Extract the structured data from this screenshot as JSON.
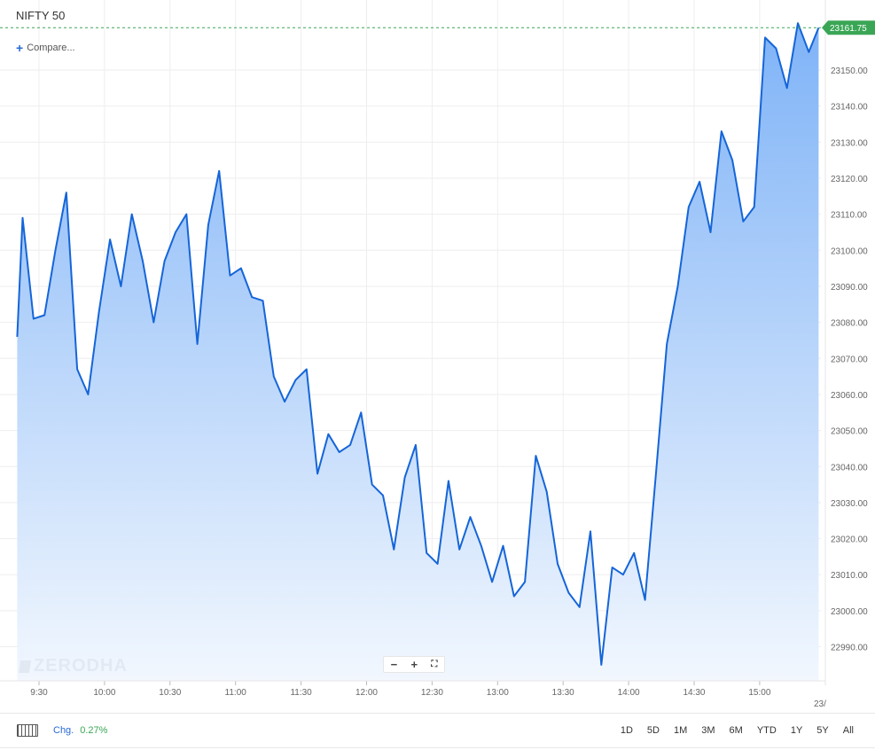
{
  "symbol": "NIFTY 50",
  "compare_label": "Compare...",
  "watermark": "ZERODHA",
  "zoom": {
    "minus": "−",
    "plus": "+",
    "fullscreen": "⛶"
  },
  "footer": {
    "chg_label": "Chg.",
    "chg_value": "0.27%",
    "ranges": [
      "1D",
      "5D",
      "1M",
      "3M",
      "6M",
      "YTD",
      "1Y",
      "5Y",
      "All"
    ]
  },
  "colors": {
    "line": "#1565d8",
    "fill_top": "#7fb3f7",
    "fill_bottom": "#f2f7fe",
    "price_tag": "#3aa655",
    "grid": "#eeeeee"
  },
  "chart_data": {
    "type": "area",
    "title": "NIFTY 50",
    "last_price_label": "23161.75",
    "last_price": 23161.75,
    "ylim": [
      22980,
      23168
    ],
    "y_ticks": [
      22990,
      23000,
      23010,
      23020,
      23030,
      23040,
      23050,
      23060,
      23070,
      23080,
      23090,
      23100,
      23110,
      23120,
      23130,
      23140,
      23150
    ],
    "y_tick_labels": [
      "22990.00",
      "23000.00",
      "23010.00",
      "23020.00",
      "23030.00",
      "23040.00",
      "23050.00",
      "23060.00",
      "23070.00",
      "23080.00",
      "23090.00",
      "23100.00",
      "23110.00",
      "23120.00",
      "23130.00",
      "23140.00",
      "23150.00"
    ],
    "x_ticks": [
      "9:30",
      "10:00",
      "10:30",
      "11:00",
      "11:30",
      "12:00",
      "12:30",
      "13:00",
      "13:30",
      "14:00",
      "14:30",
      "15:00"
    ],
    "x_tick_minutes": [
      570,
      600,
      630,
      660,
      690,
      720,
      750,
      780,
      810,
      840,
      870,
      900
    ],
    "x_range_minutes": [
      560,
      927
    ],
    "date_label": "23/",
    "x_minutes": [
      560,
      562.5,
      567.5,
      572.5,
      577.5,
      582.5,
      587.5,
      592.5,
      597.5,
      602.5,
      607.5,
      612.5,
      617.5,
      622.5,
      627.5,
      632.5,
      637.5,
      642.5,
      647.5,
      652.5,
      657.5,
      662.5,
      667.5,
      672.5,
      677.5,
      682.5,
      687.5,
      692.5,
      697.5,
      702.5,
      707.5,
      712.5,
      717.5,
      722.5,
      727.5,
      732.5,
      737.5,
      742.5,
      747.5,
      752.5,
      757.5,
      762.5,
      767.5,
      772.5,
      777.5,
      782.5,
      787.5,
      792.5,
      797.5,
      802.5,
      807.5,
      812.5,
      817.5,
      822.5,
      827.5,
      832.5,
      837.5,
      842.5,
      847.5,
      852.5,
      857.5,
      862.5,
      867.5,
      872.5,
      877.5,
      882.5,
      887.5,
      892.5,
      897.5,
      902.5,
      907.5,
      912.5,
      917.5,
      922.5,
      927
    ],
    "values": [
      23076,
      23109,
      23081,
      23082,
      23100,
      23116,
      23067,
      23060,
      23083,
      23103,
      23090,
      23110,
      23097,
      23080,
      23097,
      23105,
      23110,
      23074,
      23107,
      23122,
      23093,
      23095,
      23087,
      23086,
      23065,
      23058,
      23064,
      23067,
      23038,
      23049,
      23044,
      23046,
      23055,
      23035,
      23032,
      23017,
      23037,
      23046,
      23016,
      23013,
      23036,
      23017,
      23026,
      23018,
      23008,
      23018,
      23004,
      23008,
      23043,
      23033,
      23013,
      23005,
      23001,
      23022,
      22985,
      23012,
      23010,
      23016,
      23003,
      23038,
      23074,
      23090,
      23112,
      23119,
      23105,
      23133,
      23125,
      23108,
      23112,
      23159,
      23156,
      23145,
      23163,
      23155,
      23161.75
    ]
  }
}
